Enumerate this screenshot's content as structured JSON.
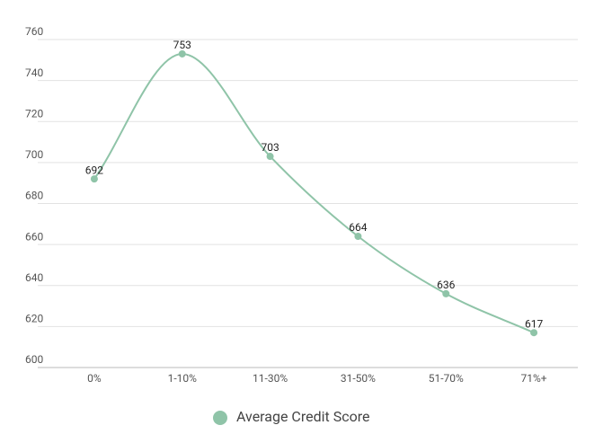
{
  "chart_data": {
    "type": "line",
    "categories": [
      "0%",
      "1-10%",
      "11-30%",
      "31-50%",
      "51-70%",
      "71%+"
    ],
    "series": [
      {
        "name": "Average Credit Score",
        "color": "#8fc4a8",
        "values": [
          692,
          753,
          703,
          664,
          636,
          617
        ]
      }
    ],
    "ylim": [
      600,
      760
    ],
    "yticks": [
      600,
      620,
      640,
      660,
      680,
      700,
      720,
      740,
      760
    ],
    "grid": true,
    "smooth": true,
    "legend": "bottom"
  }
}
